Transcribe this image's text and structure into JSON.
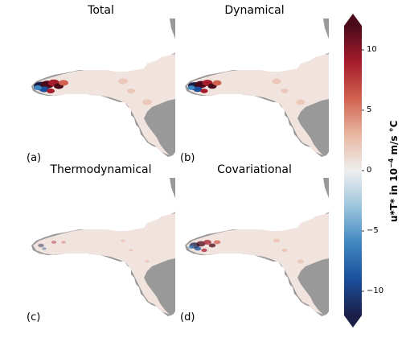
{
  "chart_data": {
    "type": "heatmap",
    "panels": [
      {
        "title": "Total",
        "letter": "(a)"
      },
      {
        "title": "Dynamical",
        "letter": "(b)"
      },
      {
        "title": "Thermodynamical",
        "letter": "(c)"
      },
      {
        "title": "Covariational",
        "letter": "(d)"
      }
    ],
    "colorbar": {
      "label_main": "u*T* in 10",
      "label_exp": "−4",
      "label_unit": " m/s °C",
      "range": [
        -12,
        12
      ],
      "extend": "both",
      "ticks": [
        {
          "value": 10,
          "label": "10"
        },
        {
          "value": 5,
          "label": "5"
        },
        {
          "value": 0,
          "label": "0"
        },
        {
          "value": -5,
          "label": "−5"
        },
        {
          "value": -10,
          "label": "−10"
        }
      ],
      "colormap": "RdBu_r",
      "colors": [
        "#1b1f48",
        "#1b4f9c",
        "#3f87c0",
        "#9cc5dd",
        "#eeeeee",
        "#e8b6a0",
        "#d0624f",
        "#a51c2c",
        "#4b0a1a"
      ]
    },
    "land_color": "#999999"
  }
}
